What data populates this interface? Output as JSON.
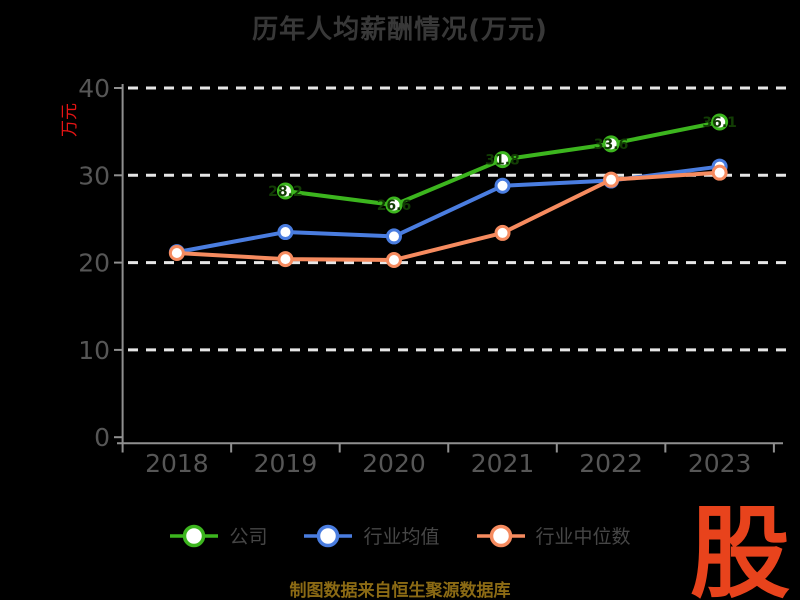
{
  "title": "历年人均薪酬情况(万元)",
  "caption": {
    "text": "制图数据来自恒生聚源数据库"
  },
  "logo": {
    "text": "股"
  },
  "colors": {
    "background": "#000000",
    "title": "#383838",
    "axis_line": "#8f8f8f",
    "tick_label": "#565656",
    "gridline": "#e6e6e6",
    "y_axis_label": "#e51414",
    "legend_text": "#464646",
    "marker_fill": "#ffffff",
    "point_label": "#123d04",
    "caption": "#8b6a14",
    "logo": "#e8431c"
  },
  "chart_data": {
    "type": "line",
    "title": "历年人均薪酬情况(万元)",
    "xlabel": "",
    "ylabel": "万元",
    "categories": [
      "2018",
      "2019",
      "2020",
      "2021",
      "2022",
      "2023"
    ],
    "yticks": [
      0,
      10,
      20,
      30,
      40
    ],
    "ylim": [
      0,
      40
    ],
    "grid": "horizontal-dashed-white",
    "legend_position": "bottom",
    "series": [
      {
        "name": "公司",
        "key": "company",
        "color": "#3cb51e",
        "values": [
          null,
          28.2,
          26.6,
          31.8,
          33.6,
          36.1
        ],
        "show_point_labels": true
      },
      {
        "name": "行业均值",
        "key": "industry-mean",
        "color": "#4a7de0",
        "values": [
          21.2,
          23.5,
          23.0,
          28.8,
          29.4,
          31.0
        ],
        "show_point_labels": false
      },
      {
        "name": "行业中位数",
        "key": "industry-median",
        "color": "#f68b5f",
        "values": [
          21.1,
          20.4,
          20.3,
          23.4,
          29.5,
          30.3
        ],
        "show_point_labels": false
      }
    ]
  }
}
